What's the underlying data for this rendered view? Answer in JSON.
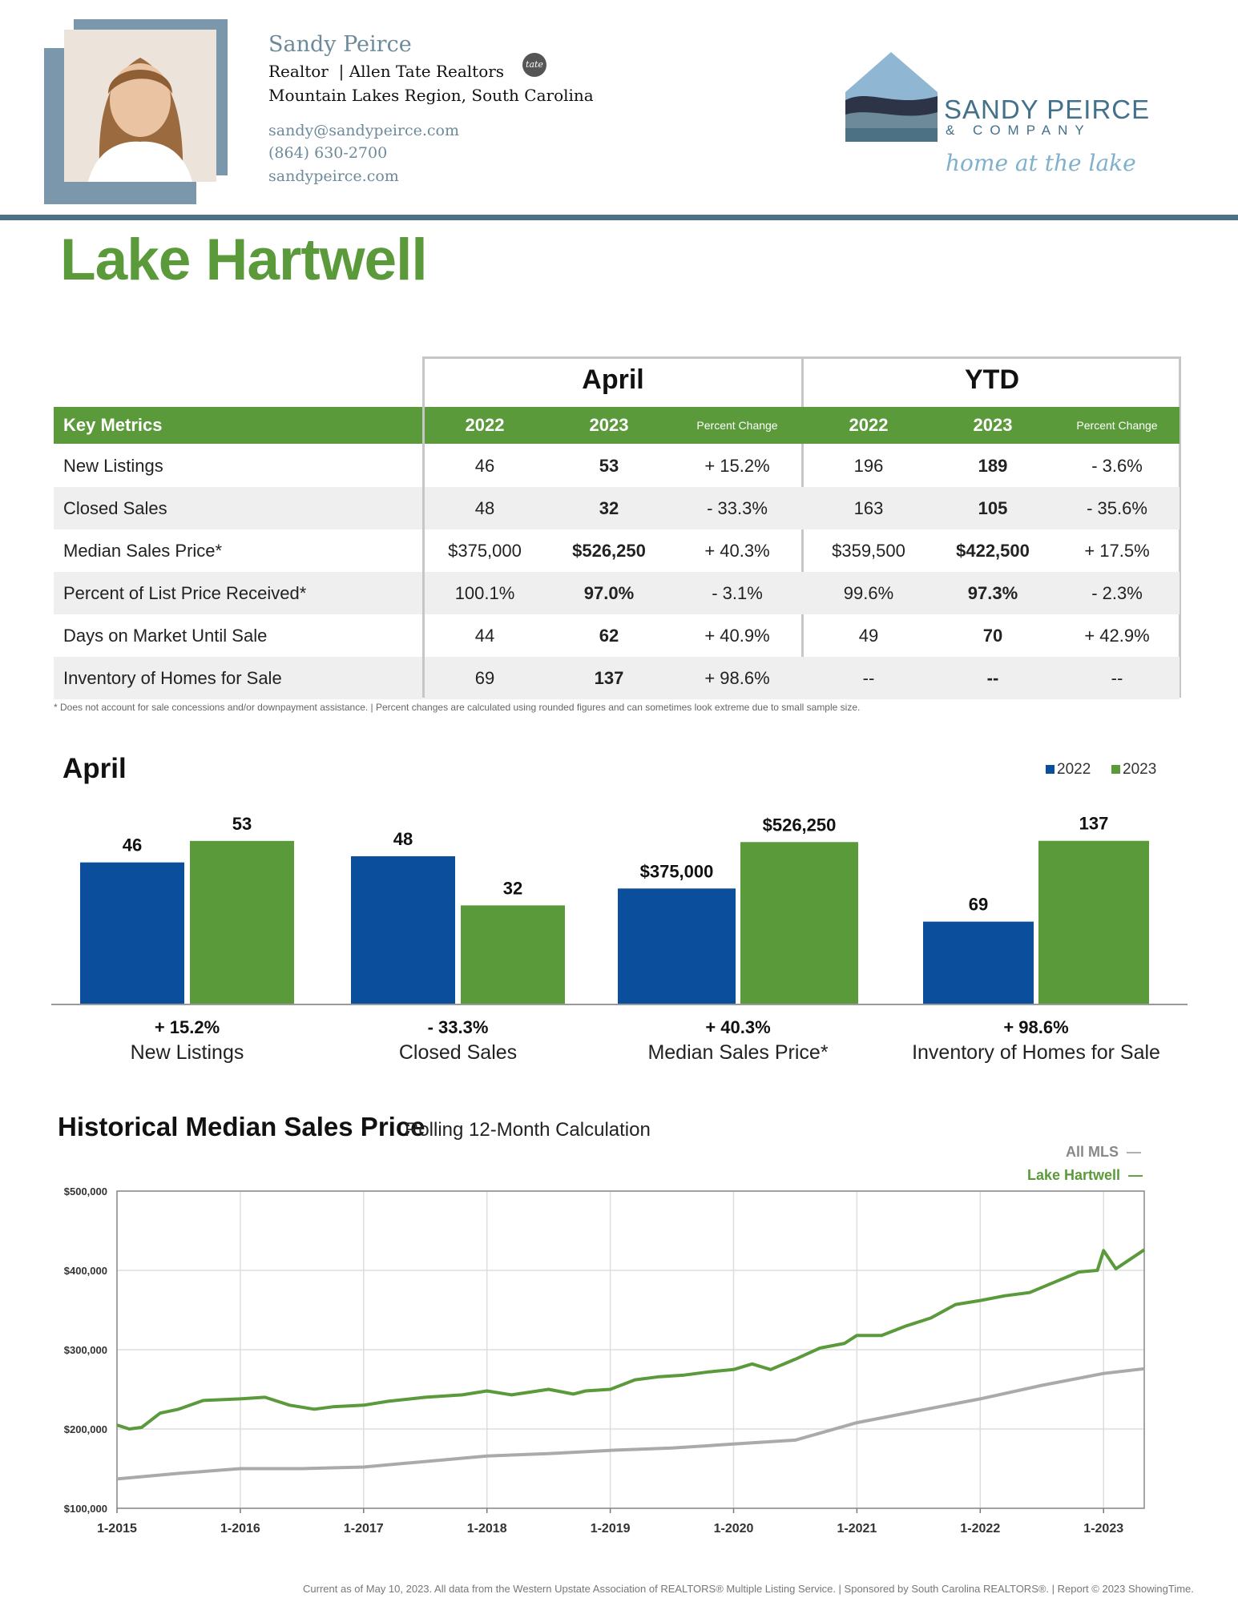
{
  "agent": {
    "name": "Sandy Peirce",
    "title": "Realtor",
    "company": "Allen Tate Realtors",
    "badge": "tate",
    "region": "Mountain Lakes Region, South Carolina",
    "email": "sandy@sandypeirce.com",
    "phone": "(864) 630-2700",
    "website": "sandypeirce.com"
  },
  "brand": {
    "name": "SANDY PEIRCE",
    "sub": "& COMPANY",
    "tagline": "home at the lake"
  },
  "page_title": "Lake Hartwell",
  "table": {
    "group_month": "April",
    "group_ytd": "YTD",
    "header": {
      "label": "Key Metrics",
      "y2022": "2022",
      "y2023": "2023",
      "pct": "Percent Change"
    },
    "rows": [
      {
        "label": "New Listings",
        "a22": "46",
        "a23": "53",
        "apct": "+ 15.2%",
        "y22": "196",
        "y23": "189",
        "ypct": "- 3.6%"
      },
      {
        "label": "Closed Sales",
        "a22": "48",
        "a23": "32",
        "apct": "- 33.3%",
        "y22": "163",
        "y23": "105",
        "ypct": "- 35.6%"
      },
      {
        "label": "Median Sales Price*",
        "a22": "$375,000",
        "a23": "$526,250",
        "apct": "+ 40.3%",
        "y22": "$359,500",
        "y23": "$422,500",
        "ypct": "+ 17.5%"
      },
      {
        "label": "Percent of List Price Received*",
        "a22": "100.1%",
        "a23": "97.0%",
        "apct": "- 3.1%",
        "y22": "99.6%",
        "y23": "97.3%",
        "ypct": "- 2.3%"
      },
      {
        "label": "Days on Market Until Sale",
        "a22": "44",
        "a23": "62",
        "apct": "+ 40.9%",
        "y22": "49",
        "y23": "70",
        "ypct": "+ 42.9%"
      },
      {
        "label": "Inventory of Homes for Sale",
        "a22": "69",
        "a23": "137",
        "apct": "+ 98.6%",
        "y22": "--",
        "y23": "--",
        "ypct": "--"
      }
    ],
    "footnote": "* Does not account for sale concessions and/or downpayment assistance.  |  Percent changes are calculated using rounded figures and can sometimes look extreme due to small sample size."
  },
  "bar_chart": {
    "title": "April",
    "legend": [
      "2022",
      "2023"
    ],
    "colors": {
      "y2022": "#0b4f9c",
      "y2023": "#5a9a3a"
    },
    "groups": [
      {
        "category": "New Listings",
        "pct": "+ 15.2%",
        "v2022": 46,
        "v2023": 53,
        "l2022": "46",
        "l2023": "53",
        "max": 60
      },
      {
        "category": "Closed Sales",
        "pct": "- 33.3%",
        "v2022": 48,
        "v2023": 32,
        "l2022": "48",
        "l2023": "32",
        "max": 60
      },
      {
        "category": "Median Sales Price*",
        "pct": "+ 40.3%",
        "v2022": 375000,
        "v2023": 526250,
        "l2022": "$375,000",
        "l2023": "$526,250",
        "max": 600000
      },
      {
        "category": "Inventory of Homes for Sale",
        "pct": "+ 98.6%",
        "v2022": 69,
        "v2023": 137,
        "l2022": "69",
        "l2023": "137",
        "max": 155
      }
    ]
  },
  "chart_data": {
    "type": "line",
    "title": "Historical Median Sales Price",
    "subtitle": "Rolling 12-Month Calculation",
    "x_ticks": [
      "1-2015",
      "1-2016",
      "1-2017",
      "1-2018",
      "1-2019",
      "1-2020",
      "1-2021",
      "1-2022",
      "1-2023"
    ],
    "y_ticks": [
      "$500,000",
      "$400,000",
      "$300,000",
      "$200,000",
      "$100,000"
    ],
    "ylim": [
      100000,
      500000
    ],
    "xlim": [
      2015.0,
      2023.33
    ],
    "series": [
      {
        "name": "All MLS",
        "color": "#aaaaaa",
        "x": [
          2015.0,
          2015.5,
          2016.0,
          2016.5,
          2017.0,
          2017.5,
          2018.0,
          2018.5,
          2019.0,
          2019.5,
          2020.0,
          2020.5,
          2021.0,
          2021.5,
          2022.0,
          2022.5,
          2023.0,
          2023.33
        ],
        "y": [
          137000,
          144000,
          150000,
          150000,
          152000,
          159000,
          166000,
          169000,
          173000,
          176000,
          181000,
          186000,
          208000,
          223000,
          238000,
          255000,
          270000,
          276000
        ]
      },
      {
        "name": "Lake Hartwell",
        "color": "#5a9a3a",
        "x": [
          2015.0,
          2015.1,
          2015.2,
          2015.35,
          2015.5,
          2015.7,
          2016.0,
          2016.2,
          2016.4,
          2016.6,
          2016.75,
          2017.0,
          2017.2,
          2017.5,
          2017.8,
          2018.0,
          2018.2,
          2018.5,
          2018.7,
          2018.8,
          2019.0,
          2019.2,
          2019.4,
          2019.6,
          2019.8,
          2020.0,
          2020.15,
          2020.3,
          2020.5,
          2020.7,
          2020.9,
          2021.0,
          2021.2,
          2021.4,
          2021.6,
          2021.8,
          2022.0,
          2022.2,
          2022.4,
          2022.6,
          2022.8,
          2022.95,
          2023.0,
          2023.1,
          2023.33
        ],
        "y": [
          205000,
          200000,
          202000,
          220000,
          225000,
          236000,
          238000,
          240000,
          230000,
          225000,
          228000,
          230000,
          235000,
          240000,
          243000,
          248000,
          243000,
          250000,
          244000,
          248000,
          250000,
          262000,
          266000,
          268000,
          272000,
          275000,
          282000,
          275000,
          288000,
          302000,
          308000,
          318000,
          318000,
          330000,
          340000,
          357000,
          362000,
          368000,
          372000,
          385000,
          398000,
          400000,
          425000,
          402000,
          426000
        ]
      }
    ]
  },
  "bottom_note": "Current as of May 10, 2023. All data from the Western Upstate Association of REALTORS® Multiple Listing Service.  |  Sponsored by South Carolina REALTORS®.  |  Report © 2023 ShowingTime."
}
